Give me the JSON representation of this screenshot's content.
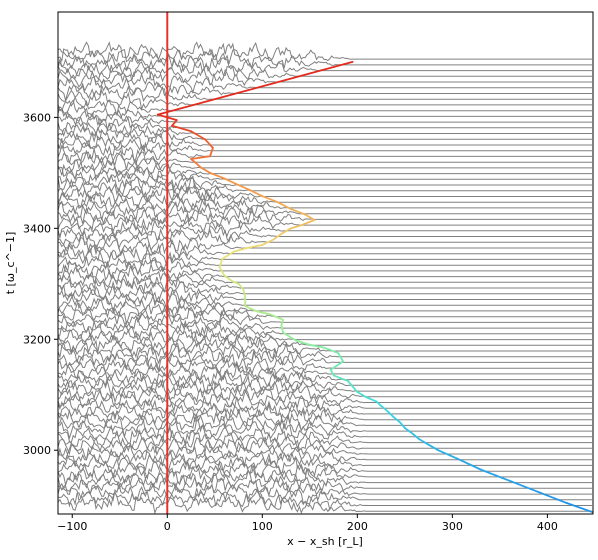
{
  "chart_data": {
    "type": "line",
    "title": "",
    "xlabel": "x − x_sh [r_L]",
    "ylabel": "t [ω_c^−1]",
    "xlim": [
      -115,
      448
    ],
    "ylim": [
      2885,
      3790
    ],
    "x_ticks": [
      "−100",
      "0",
      "100",
      "200",
      "300",
      "400"
    ],
    "x_tick_values": [
      -100,
      0,
      100,
      200,
      300,
      400
    ],
    "y_ticks": [
      "3000",
      "3200",
      "3400",
      "3600"
    ],
    "y_tick_values": [
      3000,
      3200,
      3400,
      3600
    ],
    "grid": false,
    "series": [
      {
        "kind": "stacked-profiles",
        "color": "#808080",
        "count": 80,
        "t_start": 2890,
        "t_end": 3705,
        "description_values": "offset field profiles; flat (no fluctuation) for x > shock trajectory"
      },
      {
        "kind": "reference-line",
        "color": "#e8312a",
        "x": [
          0,
          0
        ],
        "y": [
          2885,
          3790
        ]
      },
      {
        "kind": "shock-trajectory",
        "colormap": "rainbow (late = red, early = blue)",
        "x": [
          448,
          420,
          390,
          360,
          330,
          305,
          285,
          275,
          265,
          258,
          250,
          245,
          238,
          232,
          225,
          220,
          210,
          200,
          195,
          190,
          182,
          175,
          172,
          185,
          180,
          165,
          150,
          135,
          122,
          120,
          122,
          108,
          95,
          88,
          82,
          82,
          80,
          75,
          68,
          60,
          55,
          58,
          70,
          85,
          100,
          112,
          120,
          130,
          140,
          155,
          145,
          130,
          115,
          100,
          88,
          75,
          60,
          45,
          35,
          30,
          25,
          45,
          48,
          40,
          30,
          25,
          15,
          5,
          10,
          -10,
          195
        ],
        "y": [
          2888,
          2905,
          2925,
          2945,
          2965,
          2985,
          3000,
          3010,
          3020,
          3030,
          3040,
          3050,
          3060,
          3070,
          3080,
          3088,
          3095,
          3105,
          3115,
          3125,
          3130,
          3135,
          3145,
          3160,
          3175,
          3185,
          3190,
          3198,
          3212,
          3225,
          3235,
          3245,
          3250,
          3255,
          3260,
          3275,
          3290,
          3300,
          3305,
          3315,
          3330,
          3345,
          3358,
          3365,
          3370,
          3380,
          3390,
          3400,
          3405,
          3415,
          3425,
          3435,
          3448,
          3458,
          3468,
          3478,
          3490,
          3500,
          3510,
          3518,
          3525,
          3530,
          3545,
          3560,
          3570,
          3575,
          3580,
          3585,
          3595,
          3605,
          3700
        ]
      }
    ]
  }
}
